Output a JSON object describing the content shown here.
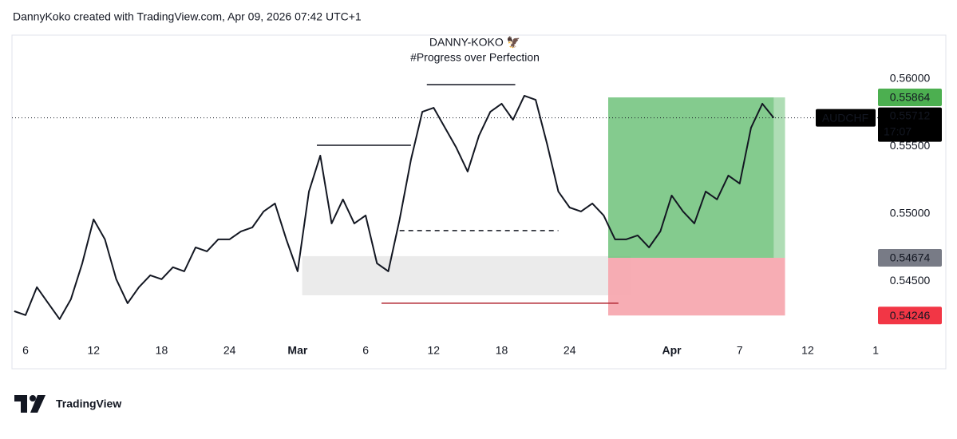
{
  "chart_data": {
    "type": "line",
    "title": "DannyKoko created with TradingView.com, Apr 09, 2026 07:42 UTC+1",
    "watermark": [
      "DANNY-KOKO 🦅",
      "#Progress over Perfection"
    ],
    "series": [
      {
        "color": "#131722",
        "x": [
          -1,
          0,
          1,
          2,
          3,
          4,
          5,
          6,
          7,
          8,
          9,
          10,
          11,
          12,
          13,
          14,
          15,
          16,
          17,
          18,
          19,
          20,
          21,
          22,
          23,
          24,
          25,
          26,
          27,
          28,
          29,
          30,
          31,
          32,
          33,
          34,
          35,
          36,
          37,
          38,
          39,
          40,
          41,
          42,
          43,
          44,
          45,
          46,
          47,
          48,
          49,
          50,
          51,
          52,
          53,
          54,
          55,
          56,
          57,
          58,
          59,
          60,
          61,
          62,
          63,
          64,
          65,
          66
        ],
        "values": [
          0.54278,
          0.54249,
          0.54456,
          0.54337,
          0.54219,
          0.54367,
          0.54633,
          0.54959,
          0.54811,
          0.54515,
          0.54337,
          0.54456,
          0.54544,
          0.54515,
          0.54604,
          0.54574,
          0.54751,
          0.54722,
          0.54811,
          0.54811,
          0.5487,
          0.54899,
          0.55018,
          0.55077,
          0.54811,
          0.54574,
          0.55166,
          0.55432,
          0.54929,
          0.55107,
          0.54929,
          0.54988,
          0.54633,
          0.54574,
          0.54959,
          0.55402,
          0.55757,
          0.55787,
          0.55639,
          0.55491,
          0.55314,
          0.5558,
          0.55757,
          0.55817,
          0.55698,
          0.55876,
          0.55846,
          0.55521,
          0.55166,
          0.55047,
          0.55018,
          0.55077,
          0.54988,
          0.54811,
          0.54811,
          0.5484,
          0.54751,
          0.5487,
          0.55136,
          0.55018,
          0.54929,
          0.55166,
          0.55107,
          0.55284,
          0.55225,
          0.55639,
          0.55817,
          0.55712
        ]
      }
    ],
    "xlim": [
      -1.2,
      75.2
    ],
    "xticks": [
      {
        "value": 0,
        "label": "6"
      },
      {
        "value": 6,
        "label": "12"
      },
      {
        "value": 12,
        "label": "18"
      },
      {
        "value": 18,
        "label": "24"
      },
      {
        "value": 24,
        "label": "Mar"
      },
      {
        "value": 30,
        "label": "6"
      },
      {
        "value": 36,
        "label": "12"
      },
      {
        "value": 42,
        "label": "18"
      },
      {
        "value": 48,
        "label": "24"
      },
      {
        "value": 57,
        "label": "Apr"
      },
      {
        "value": 63,
        "label": "7"
      },
      {
        "value": 69,
        "label": "12"
      },
      {
        "value": 75,
        "label": "1"
      }
    ],
    "ylim": [
      0.5407,
      0.5632
    ],
    "yticks": [
      {
        "value": 0.545,
        "label": "0.54500"
      },
      {
        "value": 0.55,
        "label": "0.55000"
      },
      {
        "value": 0.555,
        "label": "0.55500"
      },
      {
        "value": 0.56,
        "label": "0.56000"
      }
    ],
    "zone": {
      "x": [
        24.4,
        53.4
      ],
      "y": [
        0.54396,
        0.54686
      ],
      "color": "#e6e6e6"
    },
    "levels": [
      {
        "value": 0.55509,
        "x": [
          25.7,
          34
        ],
        "color": "#131722",
        "dash": false
      },
      {
        "value": 0.55959,
        "x": [
          35.4,
          43.2
        ],
        "color": "#131722",
        "dash": false
      },
      {
        "value": 0.54876,
        "x": [
          33,
          47
        ],
        "color": "#131722",
        "dash": true
      },
      {
        "value": 0.54337,
        "x": [
          31.4,
          52.3
        ],
        "color": "#b22833",
        "dash": false
      }
    ],
    "position": {
      "x": [
        51.4,
        67
      ],
      "target": 0.55864,
      "entry": 0.54674,
      "stop": 0.54246,
      "profit_color": "#6fc27a",
      "loss_color": "#f7a9b0"
    },
    "markers": [
      {
        "value": 0.55864,
        "color": "#4caf50"
      },
      {
        "value": 0.54674,
        "color": "#787b86"
      },
      {
        "value": 0.54246,
        "color": "#f23645"
      }
    ],
    "last": {
      "symbol": "AUDCHF",
      "value": 0.55712,
      "countdown": "17:07"
    }
  },
  "footer": {
    "brand": "TradingView"
  }
}
